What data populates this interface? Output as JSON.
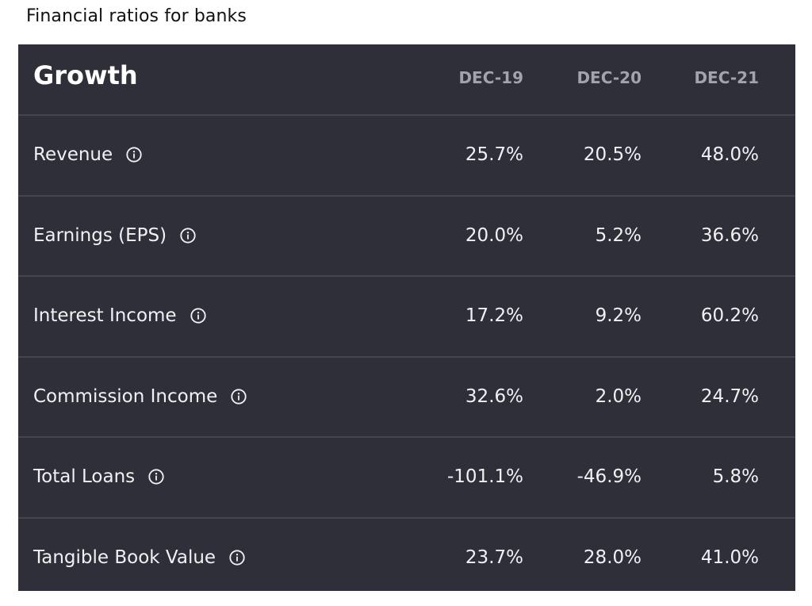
{
  "title": "Financial ratios for banks",
  "table": {
    "section_title": "Growth",
    "columns": [
      "DEC-19",
      "DEC-20",
      "DEC-21"
    ],
    "rows": [
      {
        "label": "Revenue",
        "values": [
          "25.7%",
          "20.5%",
          "48.0%"
        ]
      },
      {
        "label": "Earnings (EPS)",
        "values": [
          "20.0%",
          "5.2%",
          "36.6%"
        ]
      },
      {
        "label": "Interest Income",
        "values": [
          "17.2%",
          "9.2%",
          "60.2%"
        ]
      },
      {
        "label": "Commission Income",
        "values": [
          "32.6%",
          "2.0%",
          "24.7%"
        ]
      },
      {
        "label": "Total Loans",
        "values": [
          "-101.1%",
          "-46.9%",
          "5.8%"
        ]
      },
      {
        "label": "Tangible Book Value",
        "values": [
          "23.7%",
          "28.0%",
          "41.0%"
        ]
      }
    ]
  },
  "icons": {
    "row_info": "info-icon"
  },
  "colors": {
    "card_background": "#2f2f3a",
    "divider": "#444452",
    "header_text": "#a3a3ad",
    "body_text": "#f1f1f4"
  }
}
